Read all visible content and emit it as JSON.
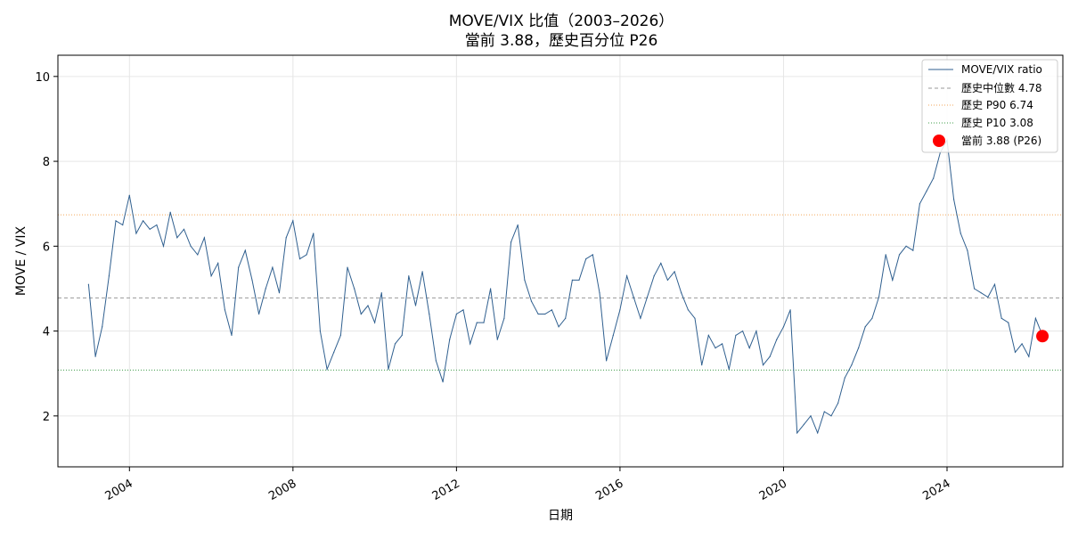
{
  "title_line1": "MOVE/VIX 比值（2003–2026）",
  "title_line2": "當前 3.88，歷史百分位 P26",
  "chart_data": {
    "type": "line",
    "xlabel": "日期",
    "ylabel": "MOVE / VIX",
    "xlim": [
      "2002-04-01",
      "2026-11-01"
    ],
    "ylim": [
      0.8,
      10.5
    ],
    "x_ticks": [
      "2004",
      "2008",
      "2012",
      "2016",
      "2020",
      "2024"
    ],
    "y_ticks": [
      2,
      4,
      6,
      8,
      10
    ],
    "grid": true,
    "legend_position": "top-right",
    "series": [
      {
        "name": "MOVE/VIX ratio",
        "color": "#2f5f8f",
        "x": [
          "2003-01",
          "2003-03",
          "2003-05",
          "2003-07",
          "2003-09",
          "2003-11",
          "2004-01",
          "2004-03",
          "2004-05",
          "2004-07",
          "2004-09",
          "2004-11",
          "2005-01",
          "2005-03",
          "2005-05",
          "2005-07",
          "2005-09",
          "2005-11",
          "2006-01",
          "2006-03",
          "2006-05",
          "2006-07",
          "2006-09",
          "2006-11",
          "2007-01",
          "2007-03",
          "2007-05",
          "2007-07",
          "2007-09",
          "2007-11",
          "2008-01",
          "2008-03",
          "2008-05",
          "2008-07",
          "2008-09",
          "2008-11",
          "2009-01",
          "2009-03",
          "2009-05",
          "2009-07",
          "2009-09",
          "2009-11",
          "2010-01",
          "2010-03",
          "2010-05",
          "2010-07",
          "2010-09",
          "2010-11",
          "2011-01",
          "2011-03",
          "2011-05",
          "2011-07",
          "2011-09",
          "2011-11",
          "2012-01",
          "2012-03",
          "2012-05",
          "2012-07",
          "2012-09",
          "2012-11",
          "2013-01",
          "2013-03",
          "2013-05",
          "2013-07",
          "2013-09",
          "2013-11",
          "2014-01",
          "2014-03",
          "2014-05",
          "2014-07",
          "2014-09",
          "2014-11",
          "2015-01",
          "2015-03",
          "2015-05",
          "2015-07",
          "2015-09",
          "2015-11",
          "2016-01",
          "2016-03",
          "2016-05",
          "2016-07",
          "2016-09",
          "2016-11",
          "2017-01",
          "2017-03",
          "2017-05",
          "2017-07",
          "2017-09",
          "2017-11",
          "2018-01",
          "2018-03",
          "2018-05",
          "2018-07",
          "2018-09",
          "2018-11",
          "2019-01",
          "2019-03",
          "2019-05",
          "2019-07",
          "2019-09",
          "2019-11",
          "2020-01",
          "2020-03",
          "2020-05",
          "2020-07",
          "2020-09",
          "2020-11",
          "2021-01",
          "2021-03",
          "2021-05",
          "2021-07",
          "2021-09",
          "2021-11",
          "2022-01",
          "2022-03",
          "2022-05",
          "2022-07",
          "2022-09",
          "2022-11",
          "2023-01",
          "2023-03",
          "2023-05",
          "2023-07",
          "2023-09",
          "2023-11",
          "2024-01",
          "2024-03",
          "2024-05",
          "2024-07",
          "2024-09",
          "2024-11",
          "2025-01",
          "2025-03",
          "2025-05",
          "2025-07",
          "2025-09",
          "2025-11",
          "2026-01",
          "2026-03",
          "2026-05"
        ],
        "values": [
          5.1,
          3.4,
          4.1,
          5.3,
          6.6,
          6.5,
          7.2,
          6.3,
          6.6,
          6.4,
          6.5,
          6.0,
          6.8,
          6.2,
          6.4,
          6.0,
          5.8,
          6.2,
          5.3,
          5.6,
          4.5,
          3.9,
          5.5,
          5.9,
          5.2,
          4.4,
          5.0,
          5.5,
          4.9,
          6.2,
          6.6,
          5.7,
          5.8,
          6.3,
          4.0,
          3.1,
          3.5,
          3.9,
          5.5,
          5.0,
          4.4,
          4.6,
          4.2,
          4.9,
          3.1,
          3.7,
          3.9,
          5.3,
          4.6,
          5.4,
          4.4,
          3.3,
          2.8,
          3.8,
          4.4,
          4.5,
          3.7,
          4.2,
          4.2,
          5.0,
          3.8,
          4.3,
          6.1,
          6.5,
          5.2,
          4.7,
          4.4,
          4.4,
          4.5,
          4.1,
          4.3,
          5.2,
          5.2,
          5.7,
          5.8,
          4.9,
          3.3,
          3.9,
          4.5,
          5.3,
          4.8,
          4.3,
          4.8,
          5.3,
          5.6,
          5.2,
          5.4,
          4.9,
          4.5,
          4.3,
          3.2,
          3.9,
          3.6,
          3.7,
          3.1,
          3.9,
          4.0,
          3.6,
          4.0,
          3.2,
          3.4,
          3.8,
          4.1,
          4.5,
          1.6,
          1.8,
          2.0,
          1.6,
          2.1,
          2.0,
          2.3,
          2.9,
          3.2,
          3.6,
          4.1,
          4.3,
          4.8,
          5.8,
          5.2,
          5.8,
          6.0,
          5.9,
          7.0,
          7.3,
          7.6,
          8.2,
          8.5,
          7.1,
          6.3,
          5.9,
          5.0,
          4.9,
          4.8,
          5.1,
          4.3,
          4.2,
          3.5,
          3.7,
          3.4,
          4.3,
          3.9
        ]
      }
    ],
    "reference_lines": [
      {
        "name": "歷史中位數 4.78",
        "value": 4.78,
        "color": "#999999",
        "style": "dashed"
      },
      {
        "name": "歷史 P90 6.74",
        "value": 6.74,
        "color": "#f2a65a",
        "style": "dotted"
      },
      {
        "name": "歷史 P10 3.08",
        "value": 3.08,
        "color": "#3f9c4a",
        "style": "dotted"
      }
    ],
    "current_point": {
      "name": "當前 3.88 (P26)",
      "x": "2026-05",
      "y": 3.88,
      "color": "#ff0000"
    }
  }
}
